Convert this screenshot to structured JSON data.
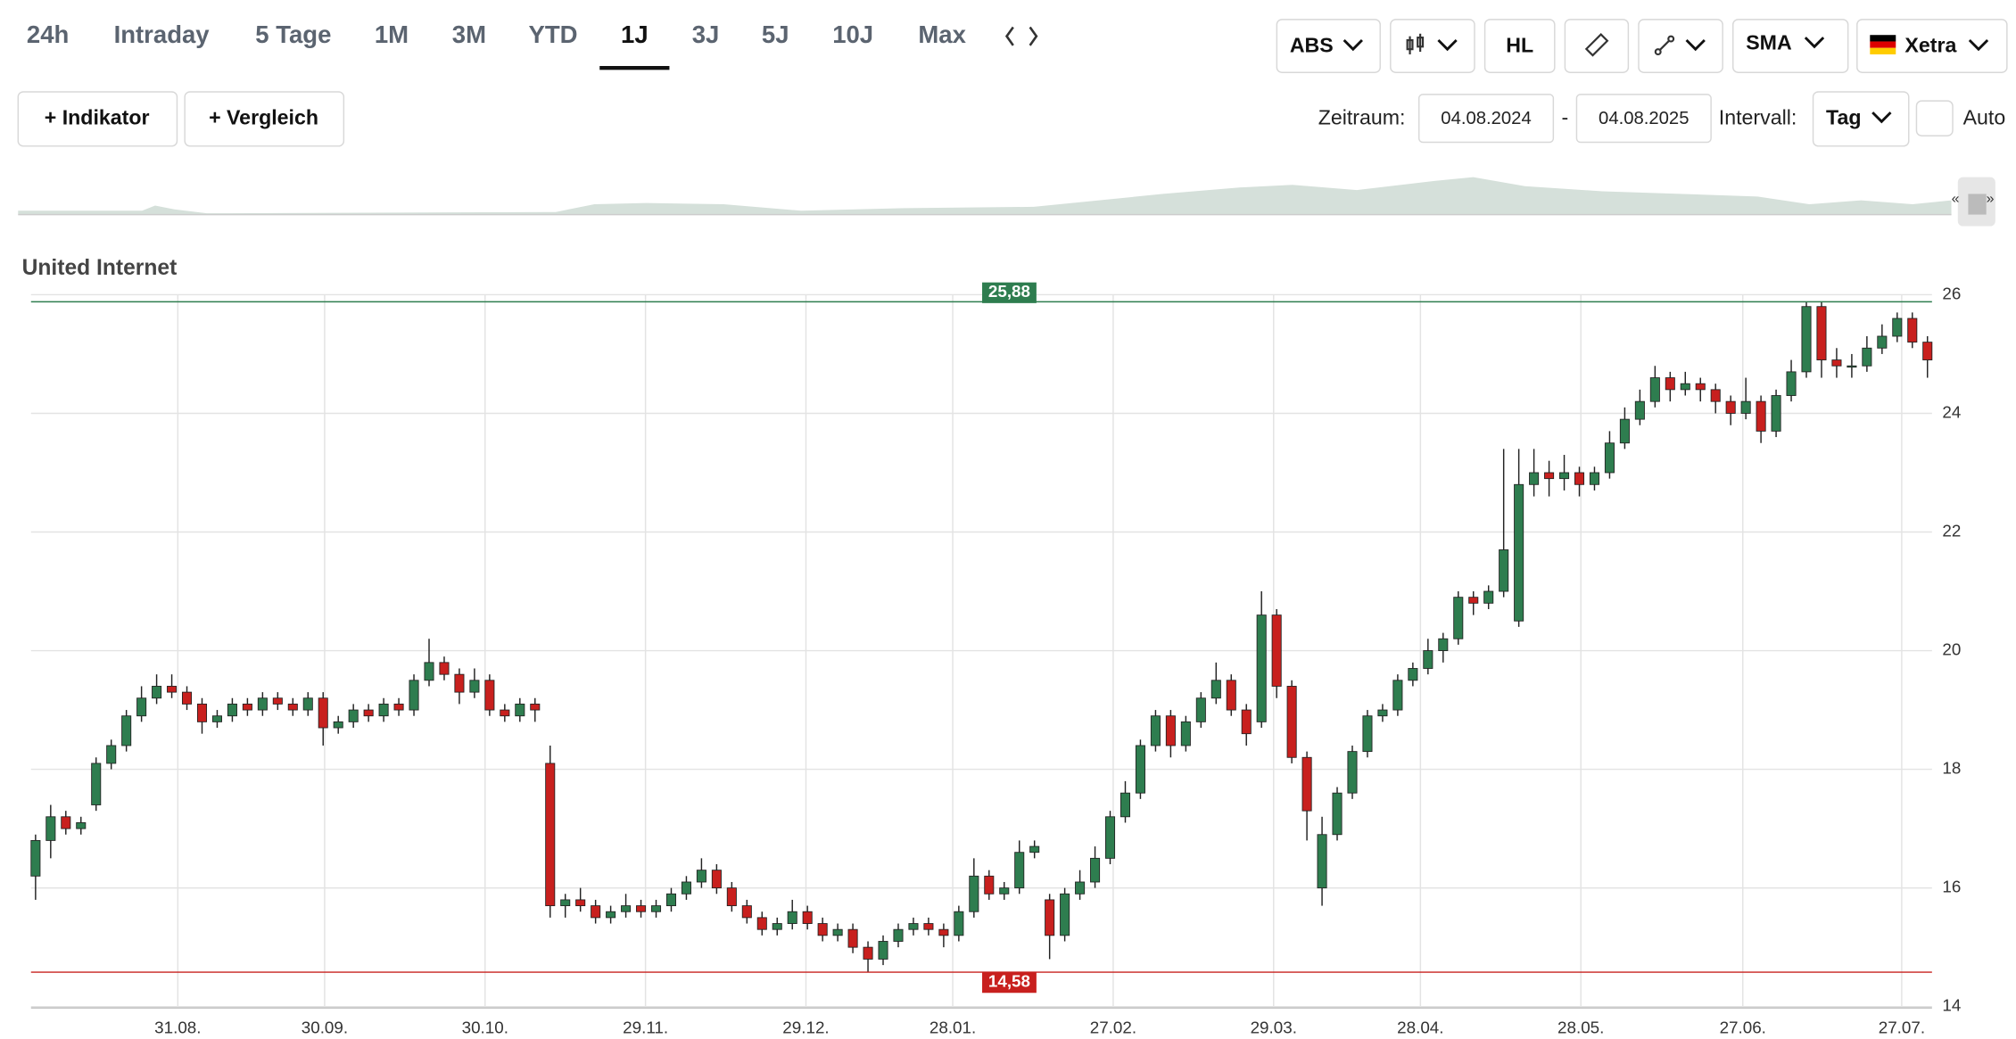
{
  "toolbar": {
    "ranges": [
      "24h",
      "Intraday",
      "5 Tage",
      "1M",
      "3M",
      "YTD",
      "1J",
      "3J",
      "5J",
      "10J",
      "Max"
    ],
    "active": 6,
    "buttons": [
      "ABS",
      "HL",
      "SMA",
      "Xetra"
    ],
    "indicator": "+ Indikator",
    "compare": "+ Vergleich",
    "period_label": "Zeitraum:",
    "period_from": "04.08.2024",
    "period_sep": "-",
    "period_to": "04.08.2025",
    "interval_label": "Intervall:",
    "interval": "Tag",
    "auto": "Auto"
  },
  "chart_data": {
    "type": "candlestick",
    "title": "United Internet",
    "up_color": "#2e7d4f",
    "down_color": "#c8201e",
    "grid": true,
    "ylim": [
      14,
      26
    ],
    "yticks": [
      14,
      16,
      18,
      20,
      22,
      24,
      26
    ],
    "xlim": [
      -0.3,
      125.3
    ],
    "xticks": [
      {
        "value": 9.4,
        "label": "31.08."
      },
      {
        "value": 19.1,
        "label": "30.09."
      },
      {
        "value": 29.7,
        "label": "30.10."
      },
      {
        "value": 40.3,
        "label": "29.11."
      },
      {
        "value": 50.9,
        "label": "29.12."
      },
      {
        "value": 60.6,
        "label": "28.01."
      },
      {
        "value": 71.2,
        "label": "27.02."
      },
      {
        "value": 81.8,
        "label": "29.03."
      },
      {
        "value": 91.5,
        "label": "28.04."
      },
      {
        "value": 102.1,
        "label": "28.05."
      },
      {
        "value": 112.8,
        "label": "27.06."
      },
      {
        "value": 123.3,
        "label": "27.07."
      }
    ],
    "high_line": {
      "value": 25.88,
      "label": "25,88",
      "color": "#2e7d4f"
    },
    "low_line": {
      "value": 14.58,
      "label": "14,58",
      "color": "#c8201e"
    },
    "ohlc": [
      [
        16.2,
        16.9,
        15.8,
        16.8
      ],
      [
        16.8,
        17.4,
        16.5,
        17.2
      ],
      [
        17.2,
        17.3,
        16.9,
        17.0
      ],
      [
        17.0,
        17.2,
        16.9,
        17.1
      ],
      [
        17.4,
        18.2,
        17.3,
        18.1
      ],
      [
        18.1,
        18.5,
        18.0,
        18.4
      ],
      [
        18.4,
        19.0,
        18.3,
        18.9
      ],
      [
        18.9,
        19.4,
        18.8,
        19.2
      ],
      [
        19.2,
        19.6,
        19.1,
        19.4
      ],
      [
        19.4,
        19.6,
        19.2,
        19.3
      ],
      [
        19.3,
        19.4,
        19.0,
        19.1
      ],
      [
        19.1,
        19.2,
        18.6,
        18.8
      ],
      [
        18.8,
        19.0,
        18.7,
        18.9
      ],
      [
        18.9,
        19.2,
        18.8,
        19.1
      ],
      [
        19.1,
        19.2,
        18.9,
        19.0
      ],
      [
        19.0,
        19.3,
        18.9,
        19.2
      ],
      [
        19.2,
        19.3,
        19.0,
        19.1
      ],
      [
        19.1,
        19.2,
        18.9,
        19.0
      ],
      [
        19.0,
        19.3,
        18.9,
        19.2
      ],
      [
        19.2,
        19.3,
        18.4,
        18.7
      ],
      [
        18.7,
        18.9,
        18.6,
        18.8
      ],
      [
        18.8,
        19.1,
        18.7,
        19.0
      ],
      [
        19.0,
        19.1,
        18.8,
        18.9
      ],
      [
        18.9,
        19.2,
        18.8,
        19.1
      ],
      [
        19.1,
        19.2,
        18.9,
        19.0
      ],
      [
        19.0,
        19.6,
        18.9,
        19.5
      ],
      [
        19.5,
        20.2,
        19.4,
        19.8
      ],
      [
        19.8,
        19.9,
        19.5,
        19.6
      ],
      [
        19.6,
        19.7,
        19.1,
        19.3
      ],
      [
        19.3,
        19.7,
        19.2,
        19.5
      ],
      [
        19.5,
        19.6,
        18.9,
        19.0
      ],
      [
        19.0,
        19.1,
        18.8,
        18.9
      ],
      [
        18.9,
        19.2,
        18.8,
        19.1
      ],
      [
        19.1,
        19.2,
        18.8,
        19.0
      ],
      [
        18.1,
        18.4,
        15.5,
        15.7
      ],
      [
        15.7,
        15.9,
        15.5,
        15.8
      ],
      [
        15.8,
        16.0,
        15.6,
        15.7
      ],
      [
        15.7,
        15.8,
        15.4,
        15.5
      ],
      [
        15.5,
        15.7,
        15.4,
        15.6
      ],
      [
        15.6,
        15.9,
        15.5,
        15.7
      ],
      [
        15.7,
        15.8,
        15.5,
        15.6
      ],
      [
        15.6,
        15.8,
        15.5,
        15.7
      ],
      [
        15.7,
        16.0,
        15.6,
        15.9
      ],
      [
        15.9,
        16.2,
        15.8,
        16.1
      ],
      [
        16.1,
        16.5,
        16.0,
        16.3
      ],
      [
        16.3,
        16.4,
        15.9,
        16.0
      ],
      [
        16.0,
        16.1,
        15.6,
        15.7
      ],
      [
        15.7,
        15.8,
        15.4,
        15.5
      ],
      [
        15.5,
        15.6,
        15.2,
        15.3
      ],
      [
        15.3,
        15.5,
        15.2,
        15.4
      ],
      [
        15.4,
        15.8,
        15.3,
        15.6
      ],
      [
        15.6,
        15.7,
        15.3,
        15.4
      ],
      [
        15.4,
        15.5,
        15.1,
        15.2
      ],
      [
        15.2,
        15.4,
        15.1,
        15.3
      ],
      [
        15.3,
        15.4,
        14.9,
        15.0
      ],
      [
        15.0,
        15.1,
        14.58,
        14.8
      ],
      [
        14.8,
        15.2,
        14.7,
        15.1
      ],
      [
        15.1,
        15.4,
        15.0,
        15.3
      ],
      [
        15.3,
        15.5,
        15.2,
        15.4
      ],
      [
        15.4,
        15.5,
        15.2,
        15.3
      ],
      [
        15.3,
        15.4,
        15.0,
        15.2
      ],
      [
        15.2,
        15.7,
        15.1,
        15.6
      ],
      [
        15.6,
        16.5,
        15.5,
        16.2
      ],
      [
        16.2,
        16.3,
        15.8,
        15.9
      ],
      [
        15.9,
        16.1,
        15.8,
        16.0
      ],
      [
        16.0,
        16.8,
        15.9,
        16.6
      ],
      [
        16.6,
        16.8,
        16.5,
        16.7
      ],
      [
        15.8,
        15.9,
        14.8,
        15.2
      ],
      [
        15.2,
        16.0,
        15.1,
        15.9
      ],
      [
        15.9,
        16.3,
        15.8,
        16.1
      ],
      [
        16.1,
        16.7,
        16.0,
        16.5
      ],
      [
        16.5,
        17.3,
        16.4,
        17.2
      ],
      [
        17.2,
        17.8,
        17.1,
        17.6
      ],
      [
        17.6,
        18.5,
        17.5,
        18.4
      ],
      [
        18.4,
        19.0,
        18.3,
        18.9
      ],
      [
        18.9,
        19.0,
        18.2,
        18.4
      ],
      [
        18.4,
        18.9,
        18.3,
        18.8
      ],
      [
        18.8,
        19.3,
        18.7,
        19.2
      ],
      [
        19.2,
        19.8,
        19.1,
        19.5
      ],
      [
        19.5,
        19.6,
        18.9,
        19.0
      ],
      [
        19.0,
        19.1,
        18.4,
        18.6
      ],
      [
        18.8,
        21.0,
        18.7,
        20.6
      ],
      [
        20.6,
        20.7,
        19.2,
        19.4
      ],
      [
        19.4,
        19.5,
        18.1,
        18.2
      ],
      [
        18.2,
        18.3,
        16.8,
        17.3
      ],
      [
        16.0,
        17.2,
        15.7,
        16.9
      ],
      [
        16.9,
        17.7,
        16.8,
        17.6
      ],
      [
        17.6,
        18.4,
        17.5,
        18.3
      ],
      [
        18.3,
        19.0,
        18.2,
        18.9
      ],
      [
        18.9,
        19.1,
        18.8,
        19.0
      ],
      [
        19.0,
        19.6,
        18.9,
        19.5
      ],
      [
        19.5,
        19.8,
        19.4,
        19.7
      ],
      [
        19.7,
        20.2,
        19.6,
        20.0
      ],
      [
        20.0,
        20.3,
        19.8,
        20.2
      ],
      [
        20.2,
        21.0,
        20.1,
        20.9
      ],
      [
        20.9,
        21.0,
        20.6,
        20.8
      ],
      [
        20.8,
        21.1,
        20.7,
        21.0
      ],
      [
        21.0,
        23.4,
        20.9,
        21.7
      ],
      [
        20.5,
        23.4,
        20.4,
        22.8
      ],
      [
        22.8,
        23.4,
        22.6,
        23.0
      ],
      [
        23.0,
        23.2,
        22.6,
        22.9
      ],
      [
        22.9,
        23.3,
        22.7,
        23.0
      ],
      [
        23.0,
        23.1,
        22.6,
        22.8
      ],
      [
        22.8,
        23.1,
        22.7,
        23.0
      ],
      [
        23.0,
        23.7,
        22.9,
        23.5
      ],
      [
        23.5,
        24.1,
        23.4,
        23.9
      ],
      [
        23.9,
        24.4,
        23.8,
        24.2
      ],
      [
        24.2,
        24.8,
        24.1,
        24.6
      ],
      [
        24.6,
        24.7,
        24.2,
        24.4
      ],
      [
        24.4,
        24.7,
        24.3,
        24.5
      ],
      [
        24.5,
        24.6,
        24.2,
        24.4
      ],
      [
        24.4,
        24.5,
        24.0,
        24.2
      ],
      [
        24.2,
        24.3,
        23.8,
        24.0
      ],
      [
        24.0,
        24.6,
        23.9,
        24.2
      ],
      [
        24.2,
        24.3,
        23.5,
        23.7
      ],
      [
        23.7,
        24.4,
        23.6,
        24.3
      ],
      [
        24.3,
        24.9,
        24.2,
        24.7
      ],
      [
        24.7,
        25.88,
        24.6,
        25.8
      ],
      [
        25.8,
        25.88,
        24.6,
        24.9
      ],
      [
        24.9,
        25.1,
        24.6,
        24.8
      ],
      [
        24.8,
        25.0,
        24.6,
        24.8
      ],
      [
        24.8,
        25.3,
        24.7,
        25.1
      ],
      [
        25.1,
        25.5,
        25.0,
        25.3
      ],
      [
        25.3,
        25.7,
        25.2,
        25.6
      ],
      [
        25.6,
        25.7,
        25.1,
        25.2
      ],
      [
        25.2,
        25.3,
        24.6,
        24.9
      ]
    ]
  }
}
